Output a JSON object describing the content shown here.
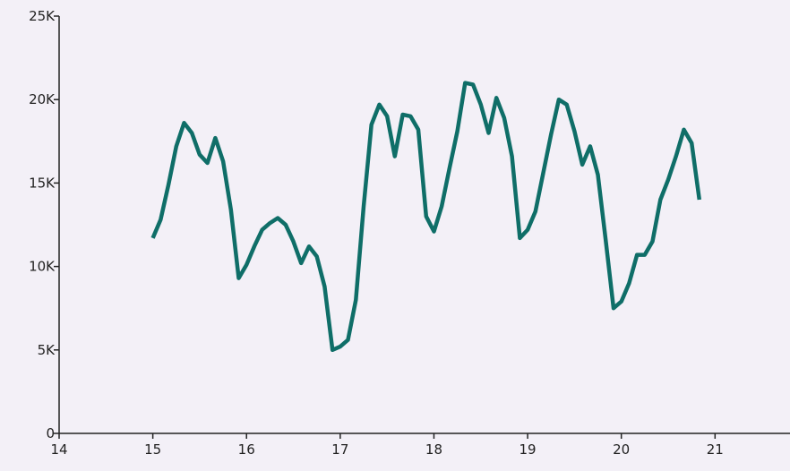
{
  "chart_data": {
    "type": "line",
    "title": "",
    "xlabel": "",
    "ylabel": "",
    "xlim": [
      14,
      21.8
    ],
    "ylim": [
      0,
      25000
    ],
    "x_ticks": [
      {
        "value": 14,
        "label": "14"
      },
      {
        "value": 15,
        "label": "15"
      },
      {
        "value": 16,
        "label": "16"
      },
      {
        "value": 17,
        "label": "17"
      },
      {
        "value": 18,
        "label": "18"
      },
      {
        "value": 19,
        "label": "19"
      },
      {
        "value": 20,
        "label": "20"
      },
      {
        "value": 21,
        "label": "21"
      }
    ],
    "y_ticks": [
      {
        "value": 0,
        "label": "0"
      },
      {
        "value": 5000,
        "label": "5K"
      },
      {
        "value": 10000,
        "label": "10K"
      },
      {
        "value": 15000,
        "label": "15K"
      },
      {
        "value": 20000,
        "label": "20K"
      },
      {
        "value": 25000,
        "label": "25K"
      }
    ],
    "grid": false,
    "legend": "none",
    "series": [
      {
        "color": "#0f6e68",
        "x": [
          15.0,
          15.083,
          15.167,
          15.25,
          15.333,
          15.417,
          15.5,
          15.583,
          15.667,
          15.75,
          15.833,
          15.917,
          16.0,
          16.083,
          16.167,
          16.25,
          16.333,
          16.417,
          16.5,
          16.583,
          16.667,
          16.75,
          16.833,
          16.917,
          17.0,
          17.083,
          17.167,
          17.25,
          17.333,
          17.417,
          17.5,
          17.583,
          17.667,
          17.75,
          17.833,
          17.917,
          18.0,
          18.083,
          18.167,
          18.25,
          18.333,
          18.417,
          18.5,
          18.583,
          18.667,
          18.75,
          18.833,
          18.917,
          19.0,
          19.083,
          19.167,
          19.25,
          19.333,
          19.417,
          19.5,
          19.583,
          19.667,
          19.75,
          19.833,
          19.917,
          20.0,
          20.083,
          20.167,
          20.25,
          20.333,
          20.417,
          20.5,
          20.583,
          20.667,
          20.75,
          20.833
        ],
        "values": [
          11700,
          12800,
          14900,
          17200,
          18600,
          18000,
          16700,
          16200,
          17700,
          16300,
          13400,
          9300,
          10100,
          11200,
          12200,
          12600,
          12900,
          12500,
          11500,
          10200,
          11200,
          10600,
          8800,
          5000,
          5200,
          5600,
          8000,
          13600,
          18500,
          19700,
          19000,
          16600,
          19100,
          19000,
          18200,
          13000,
          12100,
          13600,
          15900,
          18100,
          21000,
          20900,
          19700,
          18000,
          20100,
          18900,
          16600,
          11700,
          12200,
          13300,
          15600,
          17900,
          20000,
          19700,
          18100,
          16100,
          17200,
          15500,
          11600,
          7500,
          7900,
          9000,
          10700,
          10700,
          11500,
          14000,
          15200,
          16600,
          18200,
          17400,
          14000
        ]
      }
    ]
  }
}
